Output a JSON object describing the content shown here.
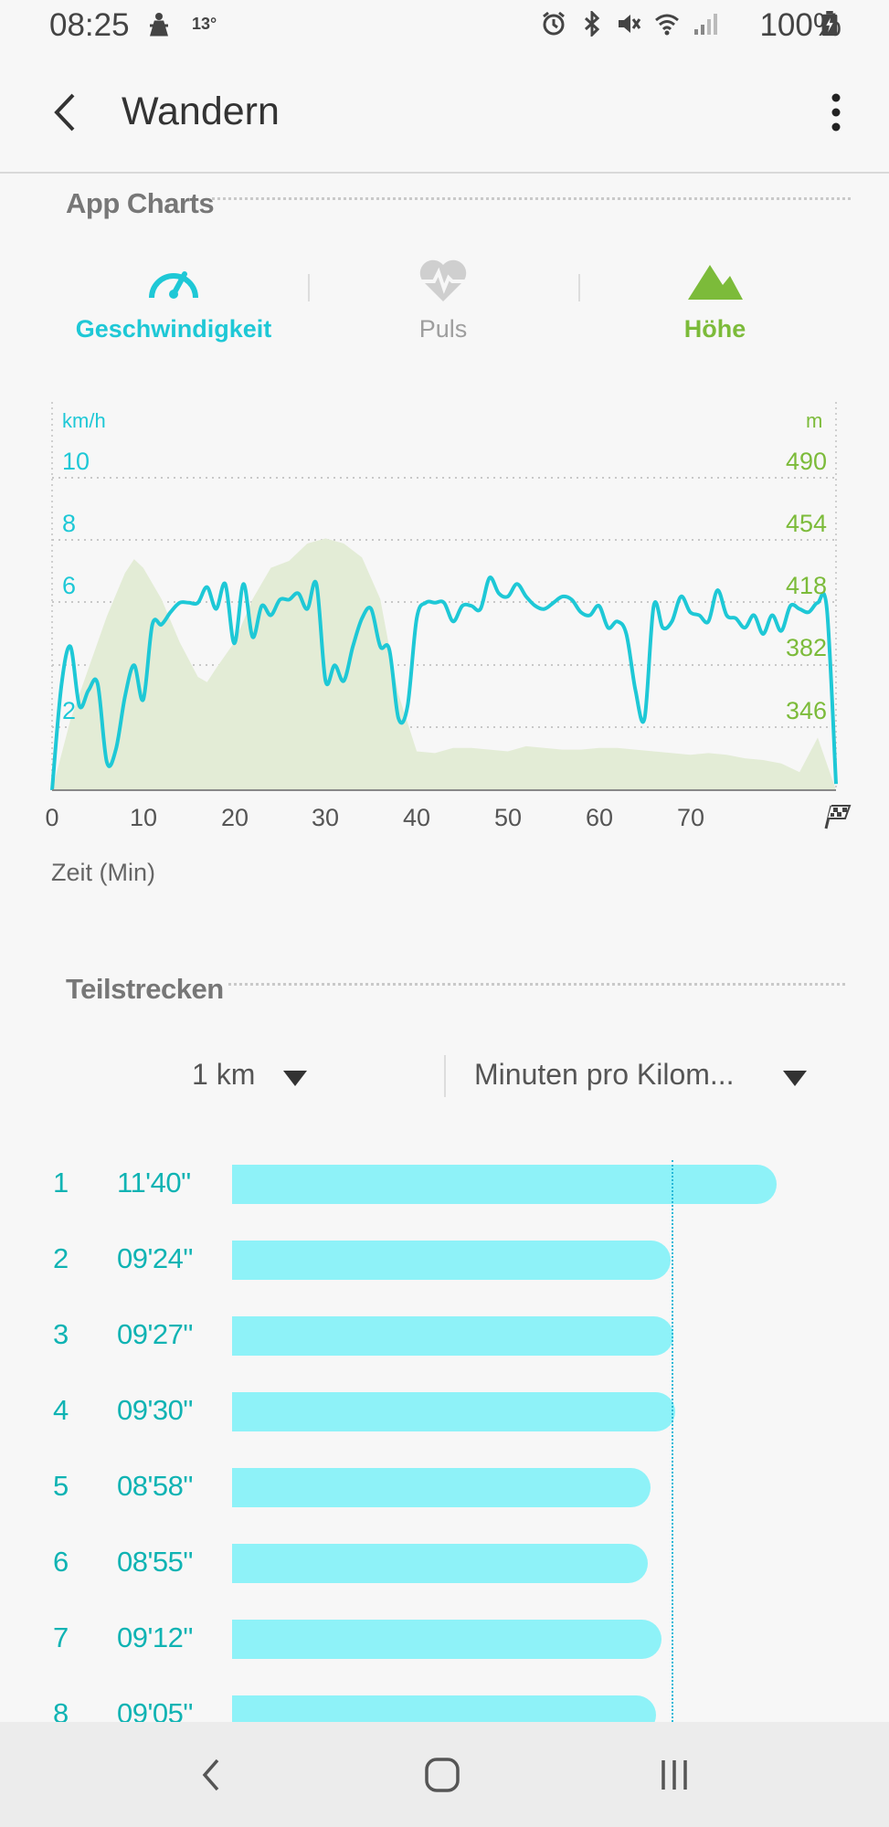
{
  "status_bar": {
    "time": "08:25",
    "temperature": "13°",
    "battery": "100%",
    "icons": [
      "person-icon",
      "alarm-icon",
      "bluetooth-icon",
      "mute-icon",
      "wifi-icon",
      "signal-icon",
      "battery-charging-icon"
    ]
  },
  "app_bar": {
    "title": "Wandern",
    "back_icon": "back-arrow-icon",
    "menu_icon": "more-vert-icon"
  },
  "charts_section": {
    "heading": "App Charts",
    "tabs": [
      {
        "label": "Geschwindigkeit",
        "icon": "speedometer-icon",
        "color": "#1ec8d6",
        "active": true
      },
      {
        "label": "Puls",
        "icon": "heart-pulse-icon",
        "color": "#9e9e9e",
        "active": false
      },
      {
        "label": "Höhe",
        "icon": "mountain-icon",
        "color": "#7cbb3a",
        "active": true
      }
    ]
  },
  "chart_data": {
    "type": "line",
    "left_unit": "km/h",
    "right_unit": "m",
    "xlabel": "Zeit (Min)",
    "x_ticks": [
      "0",
      "10",
      "20",
      "30",
      "40",
      "50",
      "60",
      "70"
    ],
    "x_end_icon": "finish-flag-icon",
    "left_ticks": [
      "10",
      "8",
      "6",
      "2"
    ],
    "right_ticks": [
      "490",
      "454",
      "418",
      "382",
      "346"
    ],
    "xlim": [
      0,
      86
    ],
    "series": [
      {
        "axis": "left",
        "color": "#1ec8d6",
        "x": [
          0,
          1,
          2,
          3,
          4,
          5,
          6,
          7,
          8,
          9,
          10,
          11,
          12,
          13,
          14,
          15,
          16,
          17,
          18,
          19,
          20,
          21,
          22,
          23,
          24,
          25,
          26,
          27,
          28,
          29,
          30,
          31,
          32,
          33,
          34,
          35,
          36,
          37,
          38,
          39,
          40,
          41,
          42,
          43,
          44,
          45,
          46,
          47,
          48,
          49,
          50,
          51,
          52,
          53,
          54,
          55,
          56,
          57,
          58,
          59,
          60,
          61,
          62,
          63,
          64,
          65,
          66,
          67,
          68,
          69,
          70,
          71,
          72,
          73,
          74,
          75,
          76,
          77,
          78,
          79,
          80,
          81,
          82,
          83,
          84,
          85,
          86
        ],
        "y": [
          0,
          3.3,
          4.6,
          2.7,
          3.2,
          3.4,
          0.9,
          1.3,
          3.0,
          4.0,
          2.9,
          5.3,
          5.3,
          5.7,
          6.0,
          6.0,
          6.0,
          6.5,
          5.8,
          6.6,
          4.7,
          6.6,
          4.9,
          5.9,
          5.6,
          6.1,
          6.1,
          6.3,
          5.8,
          6.6,
          3.5,
          4.0,
          3.5,
          4.6,
          5.5,
          5.8,
          4.6,
          4.5,
          2.3,
          2.7,
          5.5,
          6.0,
          6.0,
          6.0,
          5.4,
          5.9,
          5.9,
          5.8,
          6.8,
          6.3,
          6.2,
          6.6,
          6.2,
          5.9,
          5.8,
          6.0,
          6.2,
          6.1,
          5.7,
          5.6,
          5.9,
          5.2,
          5.4,
          5.0,
          3.2,
          2.3,
          5.9,
          5.2,
          5.4,
          6.2,
          5.7,
          5.6,
          5.4,
          6.4,
          5.6,
          5.5,
          5.2,
          5.6,
          5.0,
          5.6,
          5.1,
          5.9,
          5.8,
          5.7,
          6.0,
          5.8,
          0.2
        ]
      },
      {
        "axis": "right",
        "color": "#e3ecd6",
        "fill": true,
        "x": [
          0,
          2,
          4,
          6,
          8,
          9,
          10,
          12,
          14,
          16,
          17,
          18,
          20,
          22,
          24,
          26,
          28,
          30,
          32,
          34,
          36,
          37,
          38,
          40,
          42,
          44,
          46,
          48,
          50,
          52,
          54,
          56,
          58,
          60,
          62,
          64,
          66,
          68,
          70,
          72,
          74,
          76,
          78,
          80,
          82,
          84,
          86
        ],
        "y": [
          291,
          350,
          380,
          410,
          435,
          443,
          438,
          420,
          395,
          375,
          372,
          380,
          395,
          420,
          438,
          442,
          452,
          455,
          452,
          444,
          420,
          392,
          365,
          332,
          331,
          334,
          334,
          333,
          332,
          335,
          334,
          333,
          333,
          334,
          334,
          333,
          332,
          331,
          330,
          331,
          330,
          328,
          327,
          325,
          320,
          340,
          295
        ]
      }
    ]
  },
  "splits_section": {
    "heading": "Teilstrecken",
    "distance_dropdown": "1 km",
    "metric_dropdown": "Minuten pro Kilom...",
    "rows": [
      {
        "num": "1",
        "pace": "11'40\"",
        "fraction": 1.0
      },
      {
        "num": "2",
        "pace": "09'24\"",
        "fraction": 0.806
      },
      {
        "num": "3",
        "pace": "09'27\"",
        "fraction": 0.81
      },
      {
        "num": "4",
        "pace": "09'30\"",
        "fraction": 0.814
      },
      {
        "num": "5",
        "pace": "08'58\"",
        "fraction": 0.769
      },
      {
        "num": "6",
        "pace": "08'55\"",
        "fraction": 0.764
      },
      {
        "num": "7",
        "pace": "09'12\"",
        "fraction": 0.789
      },
      {
        "num": "8",
        "pace": "09'05\"",
        "fraction": 0.779
      }
    ]
  },
  "nav_bar": {
    "icons": [
      "nav-back-icon",
      "nav-home-icon",
      "nav-recents-icon"
    ]
  }
}
